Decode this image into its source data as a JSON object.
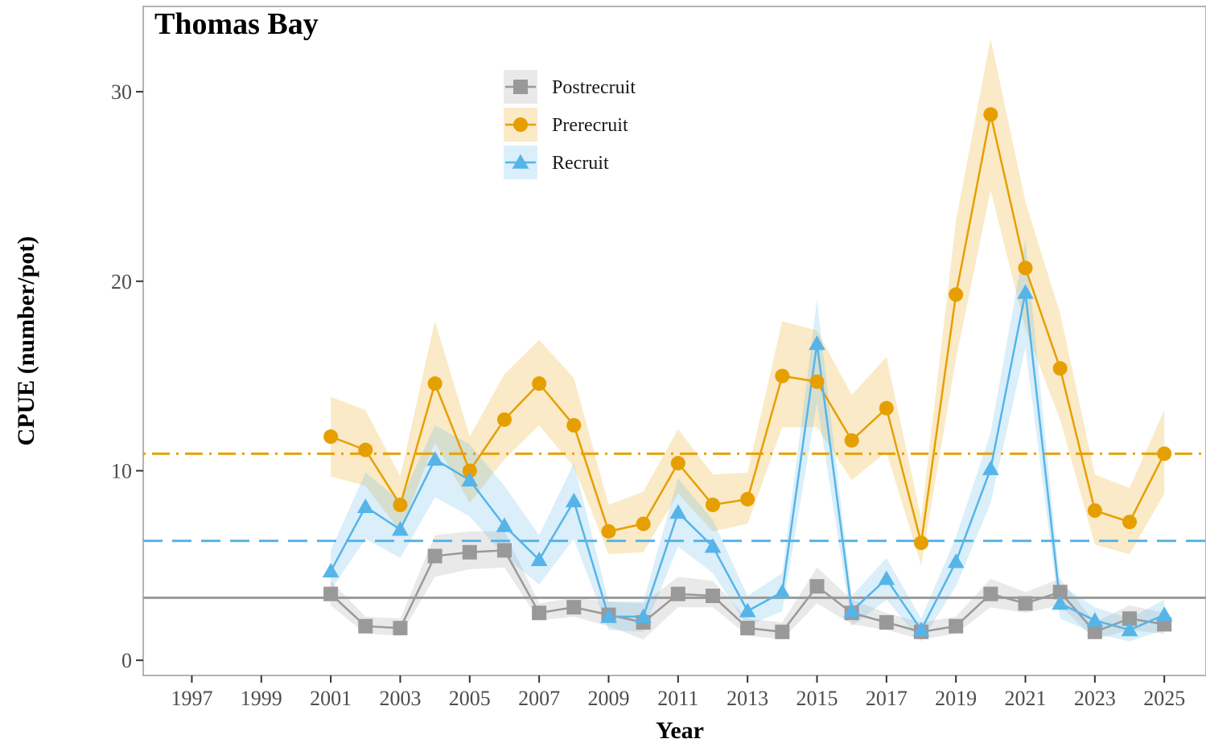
{
  "chart_data": {
    "type": "line",
    "title": "Thomas Bay",
    "xlabel": "Year",
    "ylabel": "CPUE (number/pot)",
    "xlim": [
      1995.6,
      2026.2
    ],
    "ylim": [
      -0.8,
      34.5
    ],
    "x_ticks": [
      1997,
      1999,
      2001,
      2003,
      2005,
      2007,
      2009,
      2011,
      2013,
      2015,
      2017,
      2019,
      2021,
      2023,
      2025
    ],
    "y_ticks": [
      0,
      10,
      20,
      30
    ],
    "grid": false,
    "legend_position": "top-center",
    "x": [
      2001,
      2002,
      2003,
      2004,
      2005,
      2006,
      2007,
      2008,
      2009,
      2010,
      2011,
      2012,
      2013,
      2014,
      2015,
      2016,
      2017,
      2018,
      2019,
      2020,
      2021,
      2022,
      2023,
      2024,
      2025
    ],
    "series": [
      {
        "name": "Postrecruit",
        "color": "#999999",
        "marker": "square",
        "values": [
          3.5,
          1.8,
          1.7,
          5.5,
          5.7,
          5.8,
          2.5,
          2.8,
          2.4,
          2.0,
          3.5,
          3.4,
          1.7,
          1.5,
          3.9,
          2.5,
          2.0,
          1.5,
          1.8,
          3.5,
          3.0,
          3.6,
          1.5,
          2.2,
          1.9
        ],
        "lower": [
          2.9,
          1.4,
          1.3,
          4.4,
          4.8,
          4.9,
          2.1,
          2.3,
          1.8,
          1.1,
          2.8,
          2.8,
          1.3,
          1.1,
          3.0,
          1.9,
          1.6,
          1.1,
          1.4,
          2.8,
          2.5,
          2.9,
          1.1,
          1.6,
          1.4
        ],
        "upper": [
          4.2,
          2.3,
          2.2,
          6.6,
          6.8,
          6.8,
          3.0,
          3.3,
          3.1,
          3.0,
          4.4,
          4.2,
          2.2,
          2.0,
          4.9,
          3.2,
          2.5,
          2.0,
          2.3,
          4.3,
          3.6,
          4.3,
          2.0,
          2.9,
          2.5
        ],
        "reference_line": {
          "value": 3.3,
          "style": "solid"
        }
      },
      {
        "name": "Prerecruit",
        "color": "#e69f00",
        "marker": "circle",
        "values": [
          11.8,
          11.1,
          8.2,
          14.6,
          10.0,
          12.7,
          14.6,
          12.4,
          6.8,
          7.2,
          10.4,
          8.2,
          8.5,
          15.0,
          14.7,
          11.6,
          13.3,
          6.2,
          19.3,
          28.8,
          20.7,
          15.4,
          7.9,
          7.3,
          10.9
        ],
        "lower": [
          9.7,
          9.2,
          6.8,
          11.5,
          8.3,
          10.6,
          12.4,
          10.2,
          5.6,
          5.7,
          8.8,
          6.8,
          7.2,
          12.3,
          12.3,
          9.5,
          11.0,
          5.0,
          15.9,
          24.8,
          17.5,
          12.7,
          6.1,
          5.6,
          8.8
        ],
        "upper": [
          13.9,
          13.2,
          9.7,
          17.9,
          11.8,
          15.1,
          16.9,
          14.9,
          8.2,
          8.9,
          12.2,
          9.8,
          9.9,
          17.9,
          17.4,
          14.0,
          16.0,
          7.5,
          23.2,
          32.8,
          24.2,
          18.3,
          9.8,
          9.1,
          13.2
        ],
        "reference_line": {
          "value": 10.9,
          "style": "dotdash"
        }
      },
      {
        "name": "Recruit",
        "color": "#56b4e9",
        "marker": "triangle",
        "values": [
          4.7,
          8.1,
          6.9,
          10.6,
          9.5,
          7.1,
          5.3,
          8.4,
          2.3,
          2.3,
          7.8,
          6.0,
          2.6,
          3.6,
          16.7,
          2.6,
          4.3,
          1.6,
          5.2,
          10.1,
          19.4,
          3.0,
          2.1,
          1.6,
          2.4
        ],
        "lower": [
          3.7,
          6.4,
          5.4,
          8.6,
          7.6,
          5.5,
          4.0,
          6.4,
          1.6,
          1.5,
          6.0,
          4.6,
          1.8,
          2.6,
          13.6,
          1.8,
          3.2,
          1.0,
          3.9,
          8.3,
          16.5,
          2.2,
          1.4,
          1.0,
          1.6
        ],
        "upper": [
          5.8,
          9.9,
          8.4,
          12.4,
          11.4,
          9.2,
          6.6,
          10.4,
          3.1,
          3.1,
          9.6,
          7.4,
          3.4,
          4.6,
          19.0,
          3.4,
          5.4,
          2.2,
          6.5,
          12.0,
          22.2,
          4.0,
          2.8,
          2.2,
          3.2
        ],
        "reference_line": {
          "value": 6.3,
          "style": "dashed"
        }
      }
    ]
  }
}
